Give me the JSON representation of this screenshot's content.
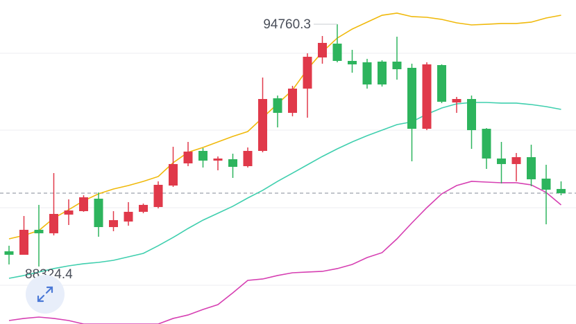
{
  "chart_data": {
    "type": "candlestick",
    "ylim": [
      86797,
      95404
    ],
    "up_color": "#e0394a",
    "down_color": "#2db45d",
    "candles": [
      {
        "open": 88728,
        "high": 88876,
        "low": 88379,
        "close": 88636
      },
      {
        "open": 88636,
        "high": 89666,
        "low": 88636,
        "close": 89299
      },
      {
        "open": 89299,
        "high": 89961,
        "low": 88324,
        "close": 89207
      },
      {
        "open": 89207,
        "high": 90806,
        "low": 89151,
        "close": 89721
      },
      {
        "open": 89703,
        "high": 90108,
        "low": 89427,
        "close": 89813
      },
      {
        "open": 89795,
        "high": 90218,
        "low": 89777,
        "close": 90163
      },
      {
        "open": 90126,
        "high": 90292,
        "low": 89115,
        "close": 89372
      },
      {
        "open": 89372,
        "high": 89795,
        "low": 89262,
        "close": 89556
      },
      {
        "open": 89519,
        "high": 90034,
        "low": 89409,
        "close": 89777
      },
      {
        "open": 89777,
        "high": 89997,
        "low": 89740,
        "close": 89961
      },
      {
        "open": 89905,
        "high": 90586,
        "low": 89869,
        "close": 90494
      },
      {
        "open": 90475,
        "high": 91505,
        "low": 90439,
        "close": 91046
      },
      {
        "open": 91064,
        "high": 91634,
        "low": 90990,
        "close": 91377
      },
      {
        "open": 91395,
        "high": 91469,
        "low": 90954,
        "close": 91137
      },
      {
        "open": 91137,
        "high": 91248,
        "low": 90880,
        "close": 91193
      },
      {
        "open": 91174,
        "high": 91321,
        "low": 90678,
        "close": 90972
      },
      {
        "open": 90990,
        "high": 91487,
        "low": 90954,
        "close": 91395
      },
      {
        "open": 91395,
        "high": 93344,
        "low": 91358,
        "close": 92774
      },
      {
        "open": 92793,
        "high": 92866,
        "low": 92020,
        "close": 92406
      },
      {
        "open": 92406,
        "high": 93124,
        "low": 92314,
        "close": 93050
      },
      {
        "open": 93050,
        "high": 93988,
        "low": 92278,
        "close": 93896
      },
      {
        "open": 93878,
        "high": 94448,
        "low": 93712,
        "close": 94264
      },
      {
        "open": 94245,
        "high": 94760,
        "low": 93749,
        "close": 93786
      },
      {
        "open": 93786,
        "high": 94080,
        "low": 93473,
        "close": 93694
      },
      {
        "open": 93749,
        "high": 93841,
        "low": 93050,
        "close": 93160
      },
      {
        "open": 93767,
        "high": 93804,
        "low": 93105,
        "close": 93160
      },
      {
        "open": 93767,
        "high": 94429,
        "low": 93289,
        "close": 93565
      },
      {
        "open": 93602,
        "high": 93712,
        "low": 91119,
        "close": 91983
      },
      {
        "open": 91983,
        "high": 93749,
        "low": 91947,
        "close": 93694
      },
      {
        "open": 93675,
        "high": 93694,
        "low": 92664,
        "close": 92701
      },
      {
        "open": 92682,
        "high": 92829,
        "low": 92406,
        "close": 92774
      },
      {
        "open": 92774,
        "high": 92866,
        "low": 91450,
        "close": 91947
      },
      {
        "open": 91983,
        "high": 92002,
        "low": 90917,
        "close": 91193
      },
      {
        "open": 91193,
        "high": 91634,
        "low": 90531,
        "close": 91046
      },
      {
        "open": 91046,
        "high": 91340,
        "low": 90586,
        "close": 91229
      },
      {
        "open": 91229,
        "high": 91560,
        "low": 90457,
        "close": 90641
      },
      {
        "open": 90659,
        "high": 91027,
        "low": 89446,
        "close": 90365
      },
      {
        "open": 90384,
        "high": 90586,
        "low": 90218,
        "close": 90273
      }
    ],
    "series": [
      {
        "color": "#f0b90b",
        "values": [
          89059,
          89151,
          89280,
          89611,
          89832,
          90071,
          90255,
          90384,
          90475,
          90586,
          90715,
          91082,
          91358,
          91487,
          91634,
          91781,
          91910,
          92278,
          92645,
          93013,
          93565,
          94025,
          94393,
          94632,
          94816,
          94999,
          95055,
          94963,
          94944,
          94889,
          94797,
          94742,
          94760,
          94779,
          94779,
          94816,
          94926,
          94999
        ]
      },
      {
        "color": "#3fcfae",
        "values": [
          88011,
          88085,
          88177,
          88269,
          88342,
          88398,
          88434,
          88489,
          88581,
          88673,
          88876,
          89096,
          89335,
          89556,
          89740,
          89924,
          90144,
          90347,
          90586,
          90806,
          91027,
          91248,
          91450,
          91634,
          91800,
          91947,
          92094,
          92167,
          92370,
          92535,
          92645,
          92682,
          92682,
          92664,
          92664,
          92627,
          92572,
          92498
        ]
      },
      {
        "color": "#d63fb2",
        "values": [
          86889,
          86945,
          86981,
          86945,
          86889,
          86797,
          86797,
          86797,
          86797,
          86797,
          86797,
          86945,
          87037,
          87184,
          87312,
          87625,
          87956,
          87993,
          88085,
          88158,
          88177,
          88195,
          88269,
          88379,
          88563,
          88692,
          89059,
          89482,
          89887,
          90255,
          90475,
          90586,
          90567,
          90549,
          90549,
          90494,
          90292,
          89961
        ]
      }
    ],
    "annotations": [
      {
        "value": 94760.3,
        "label": "94760.3"
      },
      {
        "value": 88324.4,
        "label": "88324.4"
      }
    ]
  }
}
